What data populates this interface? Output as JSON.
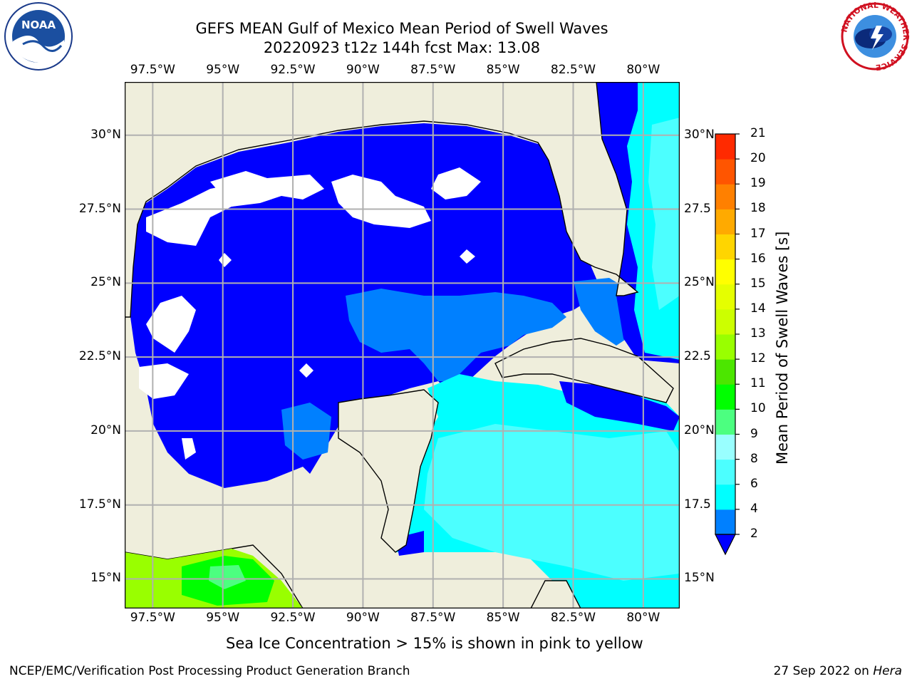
{
  "header": {
    "title_line1": "GEFS MEAN Gulf of Mexico Mean Period of Swell Waves",
    "title_line2": "20220923 t12z 144h fcst   Max: 13.08"
  },
  "logos": {
    "left": {
      "icon": "noaa-logo-icon",
      "text": "NOAA"
    },
    "right": {
      "icon": "nws-logo-icon",
      "ring_text": "NATIONAL WEATHER SERVICE"
    }
  },
  "map": {
    "lon_range": [
      -98.5,
      -78.7
    ],
    "lat_range": [
      14.0,
      31.8
    ],
    "lon_ticks": [
      "97.5°W",
      "95°W",
      "92.5°W",
      "90°W",
      "87.5°W",
      "85°W",
      "82.5°W",
      "80°W"
    ],
    "lon_values": [
      -97.5,
      -95,
      -92.5,
      -90,
      -87.5,
      -85,
      -82.5,
      -80
    ],
    "lat_ticks_left": [
      "30°N",
      "27.5°N",
      "25°N",
      "22.5°N",
      "20°N",
      "17.5°N",
      "15°N"
    ],
    "lat_ticks_right": [
      "30°N",
      "27.5",
      "25°N",
      "22.5",
      "20°N",
      "17.5",
      "15°N"
    ],
    "lat_values": [
      30,
      27.5,
      25,
      22.5,
      20,
      17.5,
      15
    ],
    "land_color": "#efeedc",
    "ocean_colors": {
      "period_2_4": "#0000ff",
      "period_4_6": "#0080ff",
      "period_6_8": "#00ffff",
      "period_8_9": "#4cffff",
      "period_10_11": "#00ff00",
      "period_12_13": "#99ff00"
    }
  },
  "colorbar": {
    "label": "Mean Period of Swell Waves [s]",
    "ticks": [
      "2",
      "4",
      "6",
      "8",
      "9",
      "10",
      "11",
      "12",
      "13",
      "14",
      "15",
      "16",
      "17",
      "18",
      "19",
      "20",
      "21"
    ],
    "colors": [
      "#0000ff",
      "#0080ff",
      "#00ffff",
      "#4cffff",
      "#99ffff",
      "#4cff80",
      "#00ff00",
      "#4ce600",
      "#99ff00",
      "#ccff00",
      "#e5ff00",
      "#ffff00",
      "#ffd500",
      "#ffaa00",
      "#ff8000",
      "#ff5500",
      "#ff2a00",
      "#ff0000"
    ]
  },
  "note": "Sea Ice Concentration > 15% is shown in pink to yellow",
  "footer": {
    "left": "NCEP/EMC/Verification Post Processing Product Generation Branch",
    "right_date": "27 Sep 2022 on ",
    "right_host": "Hera"
  }
}
